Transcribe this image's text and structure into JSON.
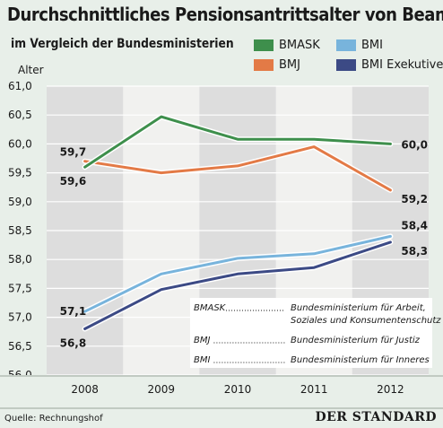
{
  "title": "Durchschnittliches Pensionsantrittsalter von Beamten",
  "subtitle": "im Vergleich der Bundesministerien",
  "source": "Quelle: Rechnungshof",
  "brand": "DER STANDARD",
  "colors": {
    "background": "#e8efe9",
    "plot_background": "#f1f1ef",
    "column_shade": "#dddddd",
    "bmask": "#3e8f4c",
    "bmj": "#e37a46",
    "bmi": "#78b4dc",
    "bmi_exekutive": "#3c4a85"
  },
  "chart_data": {
    "type": "line",
    "title": "Durchschnittliches Pensionsantrittsalter von Beamten",
    "subtitle": "im Vergleich der Bundesministerien",
    "ylabel": "Alter",
    "xlabel": "",
    "x": [
      "2008",
      "2009",
      "2010",
      "2011",
      "2012"
    ],
    "ylim": [
      56.0,
      61.0
    ],
    "yticks": [
      "61,0",
      "60,5",
      "60,0",
      "59,5",
      "59,0",
      "58,5",
      "58,0",
      "57,5",
      "57,0",
      "56,5",
      "56,0"
    ],
    "ytick_values": [
      61.0,
      60.5,
      60.0,
      59.5,
      59.0,
      58.5,
      58.0,
      57.5,
      57.0,
      56.5,
      56.0
    ],
    "grid": true,
    "legend_position": "top-right",
    "series": [
      {
        "name": "BMASK",
        "values": [
          59.6,
          60.47,
          60.08,
          60.08,
          60.0
        ],
        "color": "#3e8f4c"
      },
      {
        "name": "BMJ",
        "values": [
          59.7,
          59.5,
          59.62,
          59.95,
          59.2
        ],
        "color": "#e37a46"
      },
      {
        "name": "BMI",
        "values": [
          57.1,
          57.75,
          58.02,
          58.1,
          58.4
        ],
        "color": "#78b4dc"
      },
      {
        "name": "BMI Exekutive",
        "values": [
          56.8,
          57.48,
          57.75,
          57.86,
          58.3
        ],
        "color": "#3c4a85"
      }
    ],
    "data_labels": [
      {
        "text": "59,7",
        "series": "BMJ",
        "index": 0,
        "position": "above-left"
      },
      {
        "text": "59,6",
        "series": "BMASK",
        "index": 0,
        "position": "below-left"
      },
      {
        "text": "60,0",
        "series": "BMASK",
        "index": 4,
        "position": "right"
      },
      {
        "text": "59,2",
        "series": "BMJ",
        "index": 4,
        "position": "below-right"
      },
      {
        "text": "57,1",
        "series": "BMI",
        "index": 0,
        "position": "left"
      },
      {
        "text": "56,8",
        "series": "BMI Exekutive",
        "index": 0,
        "position": "below-left"
      },
      {
        "text": "58,4",
        "series": "BMI",
        "index": 4,
        "position": "above-right"
      },
      {
        "text": "58,3",
        "series": "BMI Exekutive",
        "index": 4,
        "position": "below-right"
      }
    ],
    "annotations": [
      {
        "abbr": "BMASK",
        "full": [
          "Bundesministerium für Arbeit,",
          "Soziales und Konsumentenschutz"
        ]
      },
      {
        "abbr": "BMJ",
        "full": [
          "Bundesministerium für Justiz"
        ]
      },
      {
        "abbr": "BMI",
        "full": [
          "Bundesministerium für Inneres"
        ]
      }
    ]
  }
}
